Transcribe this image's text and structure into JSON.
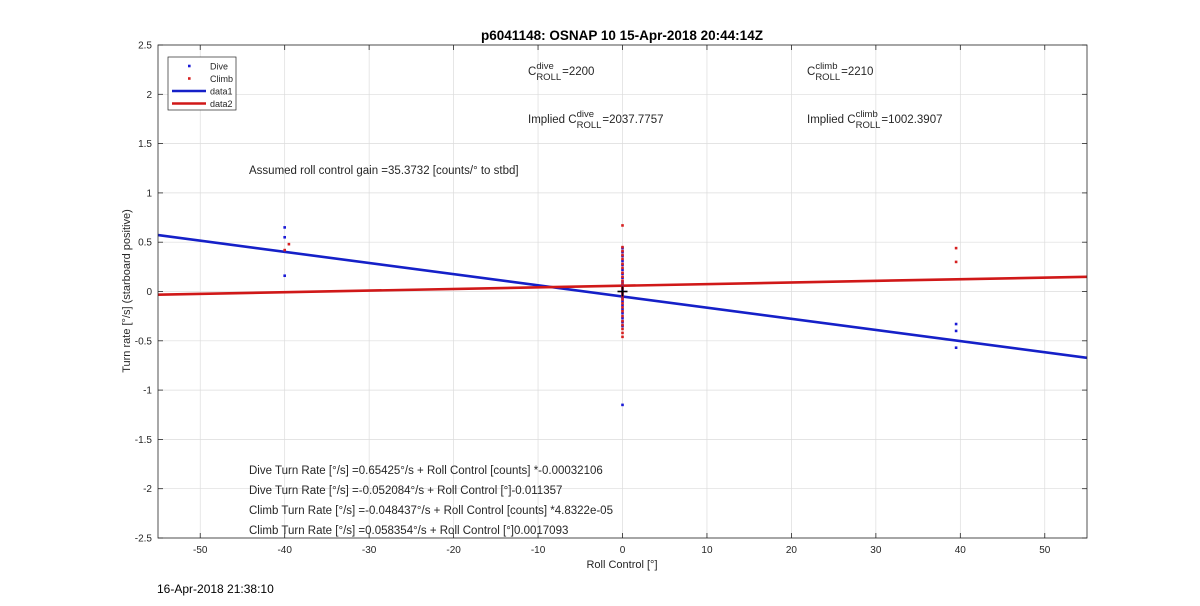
{
  "chart_data": {
    "type": "scatter",
    "title": "p6041148: OSNAP 10 15-Apr-2018 20:44:14Z",
    "xlabel": "Roll Control [°]",
    "ylabel": "Turn rate [°/s] (starboard positive)",
    "xlim": [
      -55,
      55
    ],
    "ylim": [
      -2.5,
      2.5
    ],
    "xticks": [
      -50,
      -40,
      -30,
      -20,
      -10,
      0,
      10,
      20,
      30,
      40,
      50
    ],
    "yticks": [
      -2.5,
      -2,
      -1.5,
      -1,
      -0.5,
      0,
      0.5,
      1,
      1.5,
      2,
      2.5
    ],
    "ytick_labels": [
      "-2.5",
      "-2",
      "-1.5",
      "-1",
      "-0.5",
      "0",
      "0.5",
      "1",
      "1.5",
      "2",
      "2.5"
    ],
    "xtick_labels": [
      "-50",
      "-40",
      "-30",
      "-20",
      "-10",
      "0",
      "10",
      "20",
      "30",
      "40",
      "50"
    ],
    "grid": true,
    "legend_position": "top-left",
    "legend": [
      {
        "label": "Dive",
        "kind": "marker",
        "color": "#1a1ad6"
      },
      {
        "label": "Climb",
        "kind": "marker",
        "color": "#d62020"
      },
      {
        "label": "data1",
        "kind": "line",
        "color": "#1520c8"
      },
      {
        "label": "data2",
        "kind": "line",
        "color": "#d01818"
      }
    ],
    "series": [
      {
        "name": "Dive",
        "kind": "scatter",
        "color": "#1a1ad6",
        "points": [
          [
            -40,
            0.65
          ],
          [
            -40,
            0.55
          ],
          [
            -40,
            0.16
          ],
          [
            0,
            0.44
          ],
          [
            0,
            0.4
          ],
          [
            0,
            0.36
          ],
          [
            0,
            0.31
          ],
          [
            0,
            0.27
          ],
          [
            0,
            0.22
          ],
          [
            0,
            0.18
          ],
          [
            0,
            0.14
          ],
          [
            0,
            0.1
          ],
          [
            0,
            0.07
          ],
          [
            0,
            0.04
          ],
          [
            0,
            0.02
          ],
          [
            0,
            -0.01
          ],
          [
            0,
            -0.04
          ],
          [
            0,
            -0.07
          ],
          [
            0,
            -0.1
          ],
          [
            0,
            -0.14
          ],
          [
            0,
            -0.18
          ],
          [
            0,
            -0.22
          ],
          [
            0,
            -0.27
          ],
          [
            0,
            -0.31
          ],
          [
            0,
            -0.35
          ],
          [
            0,
            -1.15
          ],
          [
            39.5,
            -0.33
          ],
          [
            39.5,
            -0.4
          ],
          [
            39.5,
            -0.57
          ]
        ]
      },
      {
        "name": "Climb",
        "kind": "scatter",
        "color": "#d62020",
        "points": [
          [
            -39.5,
            0.48
          ],
          [
            -40,
            0.42
          ],
          [
            0,
            0.67
          ],
          [
            0,
            0.45
          ],
          [
            0,
            0.41
          ],
          [
            0,
            0.37
          ],
          [
            0,
            0.33
          ],
          [
            0,
            0.28
          ],
          [
            0,
            0.24
          ],
          [
            0,
            0.19
          ],
          [
            0,
            0.15
          ],
          [
            0,
            0.11
          ],
          [
            0,
            0.08
          ],
          [
            0,
            0.05
          ],
          [
            0,
            0.03
          ],
          [
            0,
            -0.02
          ],
          [
            0,
            -0.05
          ],
          [
            0,
            -0.08
          ],
          [
            0,
            -0.12
          ],
          [
            0,
            -0.16
          ],
          [
            0,
            -0.2
          ],
          [
            0,
            -0.25
          ],
          [
            0,
            -0.3
          ],
          [
            0,
            -0.34
          ],
          [
            0,
            -0.38
          ],
          [
            0,
            -0.42
          ],
          [
            0,
            -0.46
          ],
          [
            39.5,
            0.44
          ],
          [
            39.5,
            0.3
          ]
        ]
      },
      {
        "name": "data1",
        "kind": "line",
        "color": "#1520c8",
        "points": [
          [
            -55,
            0.572
          ],
          [
            55,
            -0.673
          ]
        ]
      },
      {
        "name": "data2",
        "kind": "line",
        "color": "#d01818",
        "points": [
          [
            -55,
            -0.032
          ],
          [
            55,
            0.149
          ]
        ]
      }
    ],
    "marker_cross": [
      0,
      0
    ],
    "annotations": [
      {
        "id": "c_roll_dive",
        "prefix": "C",
        "sup": "dive",
        "sub": "ROLL",
        "suffix": "=2200"
      },
      {
        "id": "c_roll_climb",
        "prefix": "C",
        "sup": "climb",
        "sub": "ROLL",
        "suffix": "=2210"
      },
      {
        "id": "implied_dive",
        "prefix": "Implied C",
        "sup": "dive",
        "sub": "ROLL",
        "suffix": "=2037.7757"
      },
      {
        "id": "implied_climb",
        "prefix": "Implied C",
        "sup": "climb",
        "sub": "ROLL",
        "suffix": "=1002.3907"
      },
      {
        "id": "gain",
        "text": "Assumed roll control gain =35.3732 [counts/° to stbd]"
      },
      {
        "id": "fit1",
        "text": "Dive Turn Rate [°/s] =0.65425°/s + Roll Control [counts] *-0.00032106"
      },
      {
        "id": "fit2",
        "text": "Dive Turn Rate [°/s] =-0.052084°/s + Roll Control [°]-0.011357"
      },
      {
        "id": "fit3",
        "text": "Climb Turn Rate [°/s] =-0.048437°/s + Roll Control [counts] *4.8322e-05"
      },
      {
        "id": "fit4",
        "text": "Climb Turn Rate [°/s] =0.058354°/s + Roll Control [°]0.0017093"
      }
    ]
  },
  "footer": {
    "timestamp": "16-Apr-2018 21:38:10"
  }
}
